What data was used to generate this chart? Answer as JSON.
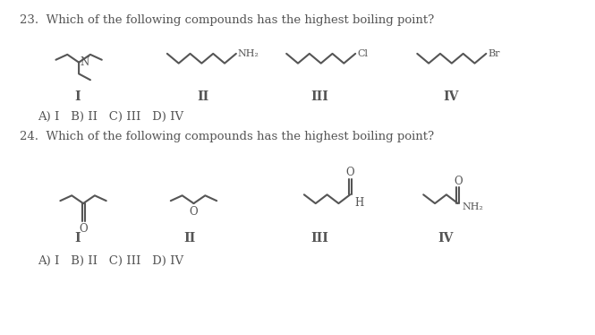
{
  "q23_text": "23.  Which of the following compounds has the highest boiling point?",
  "q24_text": "24.  Which of the following compounds has the highest boiling point?",
  "answer23": "A) I   B) II   C) III   D) IV",
  "answer24": "A) I   B) II   C) III   D) IV",
  "bg_color": "#ffffff",
  "line_color": "#555555",
  "text_color": "#555555",
  "question_color": "#1a44cc"
}
